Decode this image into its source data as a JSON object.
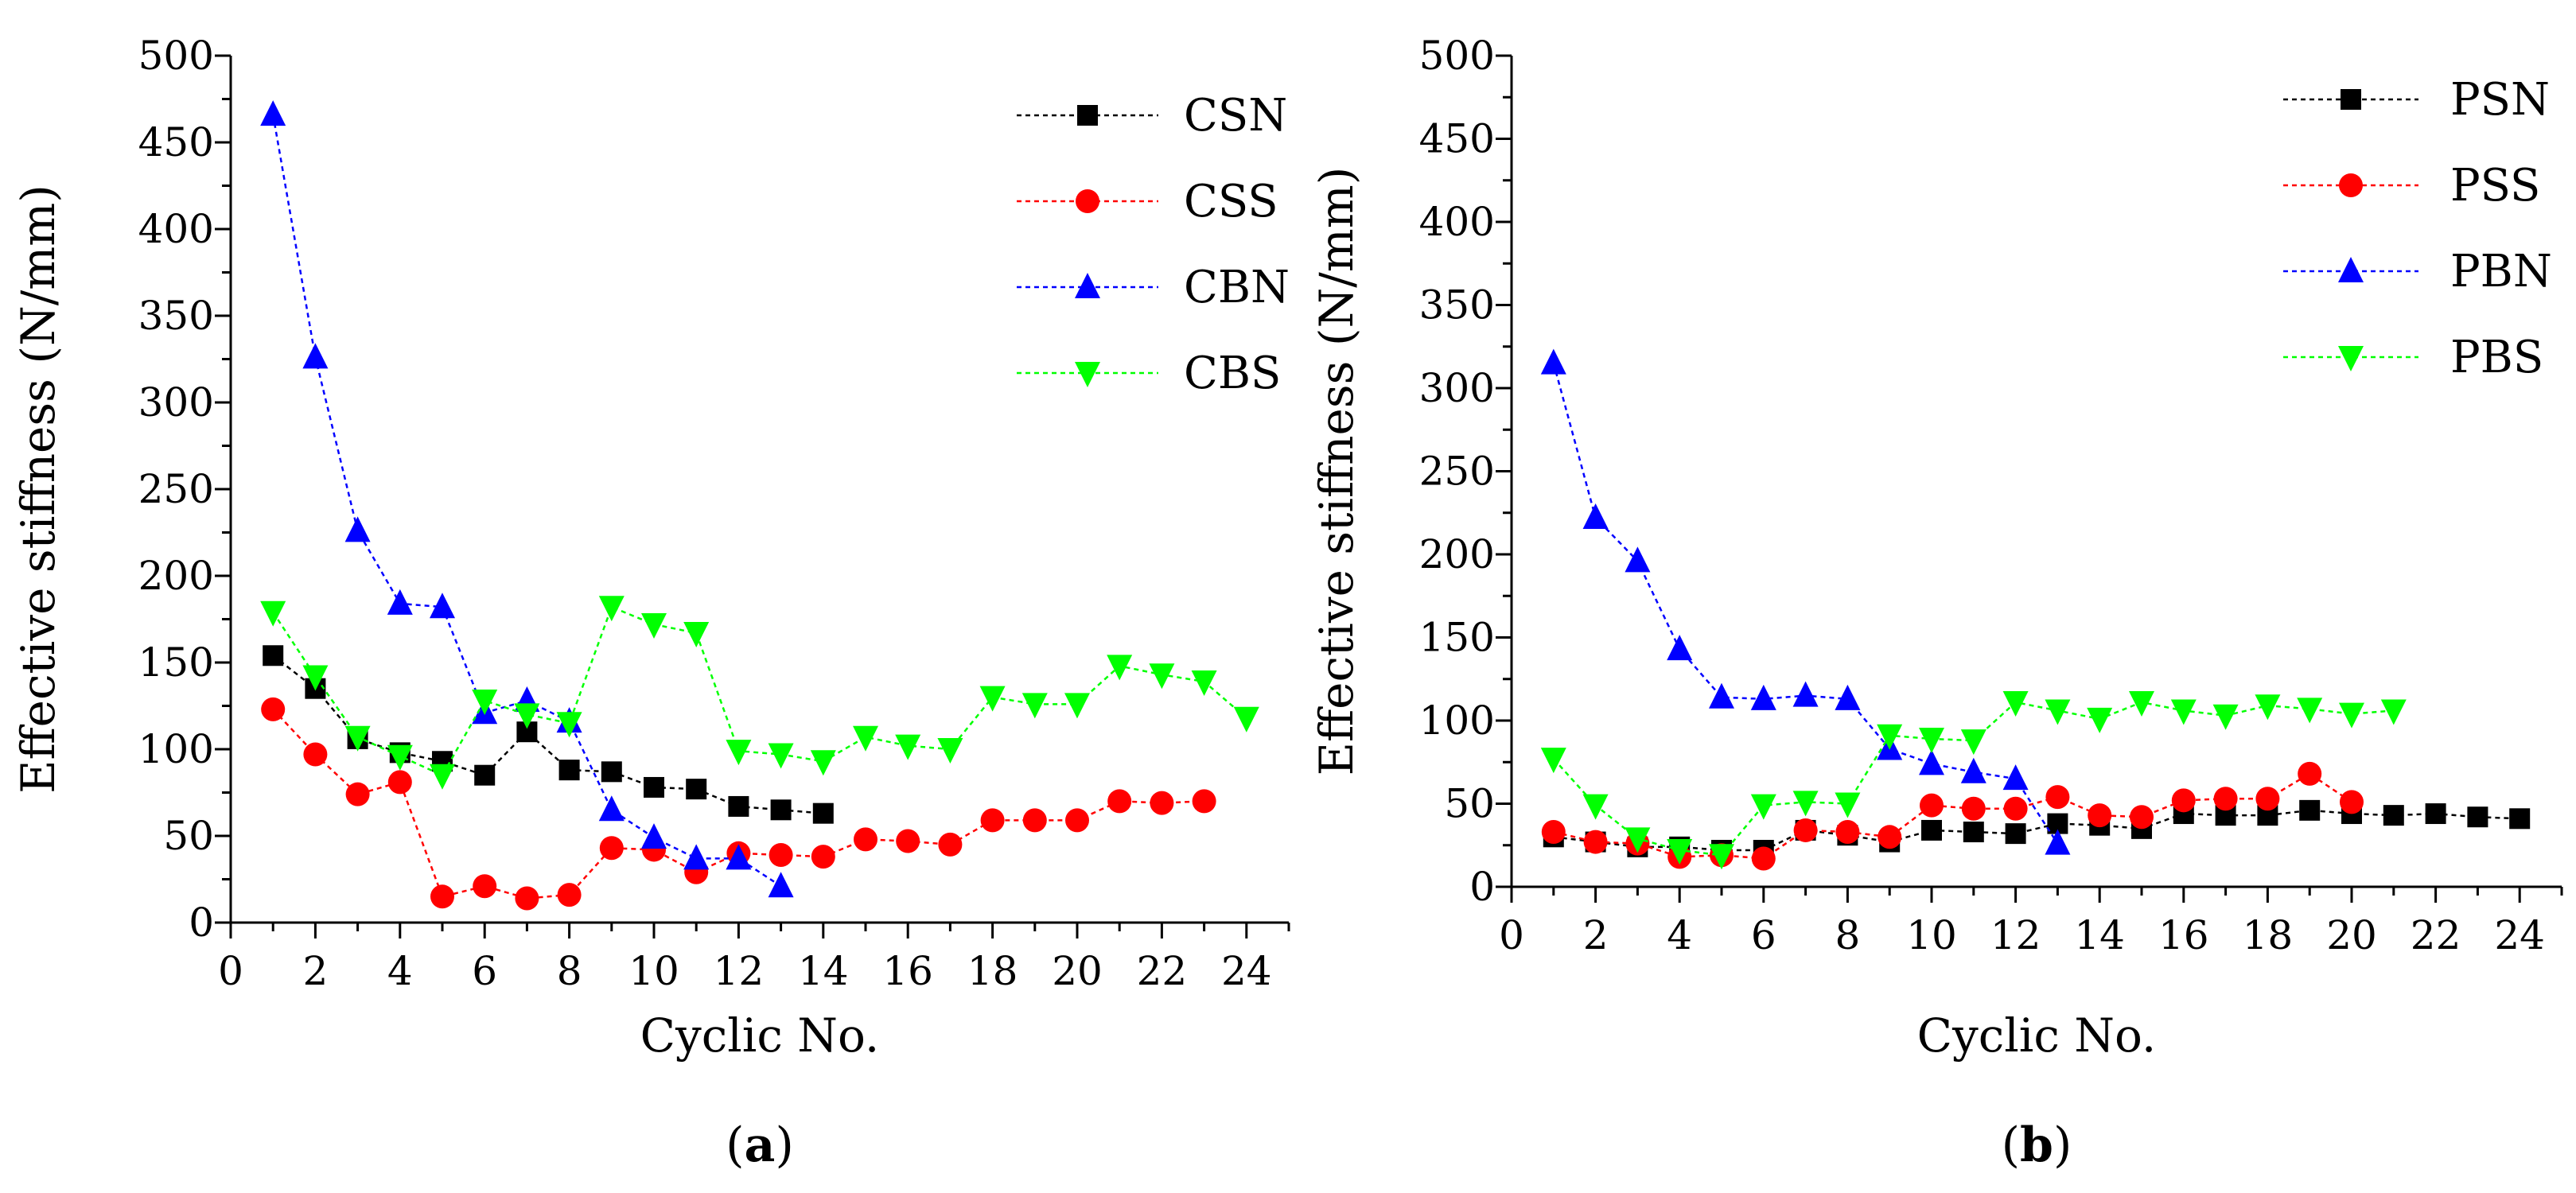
{
  "chart_data": [
    {
      "type": "line",
      "panel_label": "(a)",
      "panel_letter": "a",
      "xlabel": "Cyclic No.",
      "ylabel": "Effective stiffness (N/mm)",
      "xlim": [
        0,
        25
      ],
      "ylim": [
        0,
        500
      ],
      "xticks": [
        0,
        2,
        4,
        6,
        8,
        10,
        12,
        14,
        16,
        18,
        20,
        22,
        24
      ],
      "yticks": [
        0,
        50,
        100,
        150,
        200,
        250,
        300,
        350,
        400,
        450,
        500
      ],
      "legend_position": "top-right",
      "series": [
        {
          "name": "CSN",
          "marker": "square",
          "color": "#000000",
          "x": [
            1,
            2,
            3,
            4,
            5,
            6,
            7,
            8,
            9,
            10,
            11,
            12,
            13,
            14
          ],
          "y": [
            154,
            135,
            106,
            98,
            93,
            85,
            110,
            88,
            87,
            78,
            77,
            67,
            65,
            63
          ]
        },
        {
          "name": "CSS",
          "marker": "circle",
          "color": "#ff0000",
          "x": [
            1,
            2,
            3,
            4,
            5,
            6,
            7,
            8,
            9,
            10,
            11,
            12,
            13,
            14,
            15,
            16,
            17,
            18,
            19,
            20,
            21,
            22,
            23
          ],
          "y": [
            123,
            97,
            74,
            81,
            15,
            21,
            14,
            16,
            43,
            42,
            29,
            40,
            39,
            38,
            48,
            47,
            45,
            59,
            59,
            59,
            70,
            69,
            70
          ]
        },
        {
          "name": "CBN",
          "marker": "triangle-up",
          "color": "#0000ff",
          "x": [
            1,
            2,
            3,
            4,
            5,
            6,
            7,
            8,
            9,
            10,
            11,
            12,
            13
          ],
          "y": [
            466,
            326,
            226,
            184,
            182,
            121,
            128,
            116,
            65,
            49,
            37,
            37,
            21
          ]
        },
        {
          "name": "CBS",
          "marker": "triangle-down",
          "color": "#00ff00",
          "x": [
            1,
            2,
            3,
            4,
            5,
            6,
            7,
            8,
            9,
            10,
            11,
            12,
            13,
            14,
            15,
            16,
            17,
            18,
            19,
            20,
            21,
            22,
            23,
            24
          ],
          "y": [
            179,
            142,
            107,
            96,
            85,
            128,
            120,
            115,
            182,
            172,
            167,
            99,
            97,
            93,
            107,
            102,
            100,
            130,
            126,
            126,
            148,
            143,
            139,
            118
          ]
        }
      ]
    },
    {
      "type": "line",
      "panel_label": "(b)",
      "panel_letter": "b",
      "xlabel": "Cyclic No.",
      "ylabel": "Effective stiffness (N/mm)",
      "xlim": [
        0,
        25
      ],
      "ylim": [
        0,
        500
      ],
      "xticks": [
        0,
        2,
        4,
        6,
        8,
        10,
        12,
        14,
        16,
        18,
        20,
        22,
        24
      ],
      "yticks": [
        0,
        50,
        100,
        150,
        200,
        250,
        300,
        350,
        400,
        450,
        500
      ],
      "legend_position": "top-right",
      "series": [
        {
          "name": "PSN",
          "marker": "square",
          "color": "#000000",
          "x": [
            1,
            2,
            3,
            4,
            5,
            6,
            7,
            8,
            9,
            10,
            11,
            12,
            13,
            14,
            15,
            16,
            17,
            18,
            19,
            20,
            21,
            22,
            23,
            24
          ],
          "y": [
            30,
            27,
            24,
            24,
            22,
            22,
            34,
            31,
            27,
            34,
            33,
            32,
            38,
            37,
            35,
            44,
            43,
            43,
            46,
            44,
            43,
            44,
            42,
            41
          ]
        },
        {
          "name": "PSS",
          "marker": "circle",
          "color": "#ff0000",
          "x": [
            1,
            2,
            3,
            4,
            5,
            6,
            7,
            8,
            9,
            10,
            11,
            12,
            13,
            14,
            15,
            16,
            17,
            18,
            19,
            20
          ],
          "y": [
            33,
            27,
            26,
            18,
            19,
            17,
            34,
            33,
            30,
            49,
            47,
            47,
            54,
            43,
            42,
            52,
            53,
            53,
            68,
            51
          ]
        },
        {
          "name": "PBN",
          "marker": "triangle-up",
          "color": "#0000ff",
          "x": [
            1,
            2,
            3,
            4,
            5,
            6,
            7,
            8,
            9,
            10,
            11,
            12,
            13
          ],
          "y": [
            315,
            222,
            196,
            143,
            114,
            113,
            115,
            113,
            83,
            74,
            69,
            65,
            26
          ]
        },
        {
          "name": "PBS",
          "marker": "triangle-down",
          "color": "#00ff00",
          "x": [
            1,
            2,
            3,
            4,
            5,
            6,
            7,
            8,
            9,
            10,
            11,
            12,
            13,
            14,
            15,
            16,
            17,
            18,
            19,
            20,
            21
          ],
          "y": [
            77,
            49,
            29,
            22,
            19,
            49,
            51,
            50,
            91,
            89,
            88,
            111,
            106,
            101,
            111,
            106,
            103,
            109,
            107,
            104,
            106
          ]
        }
      ]
    }
  ]
}
